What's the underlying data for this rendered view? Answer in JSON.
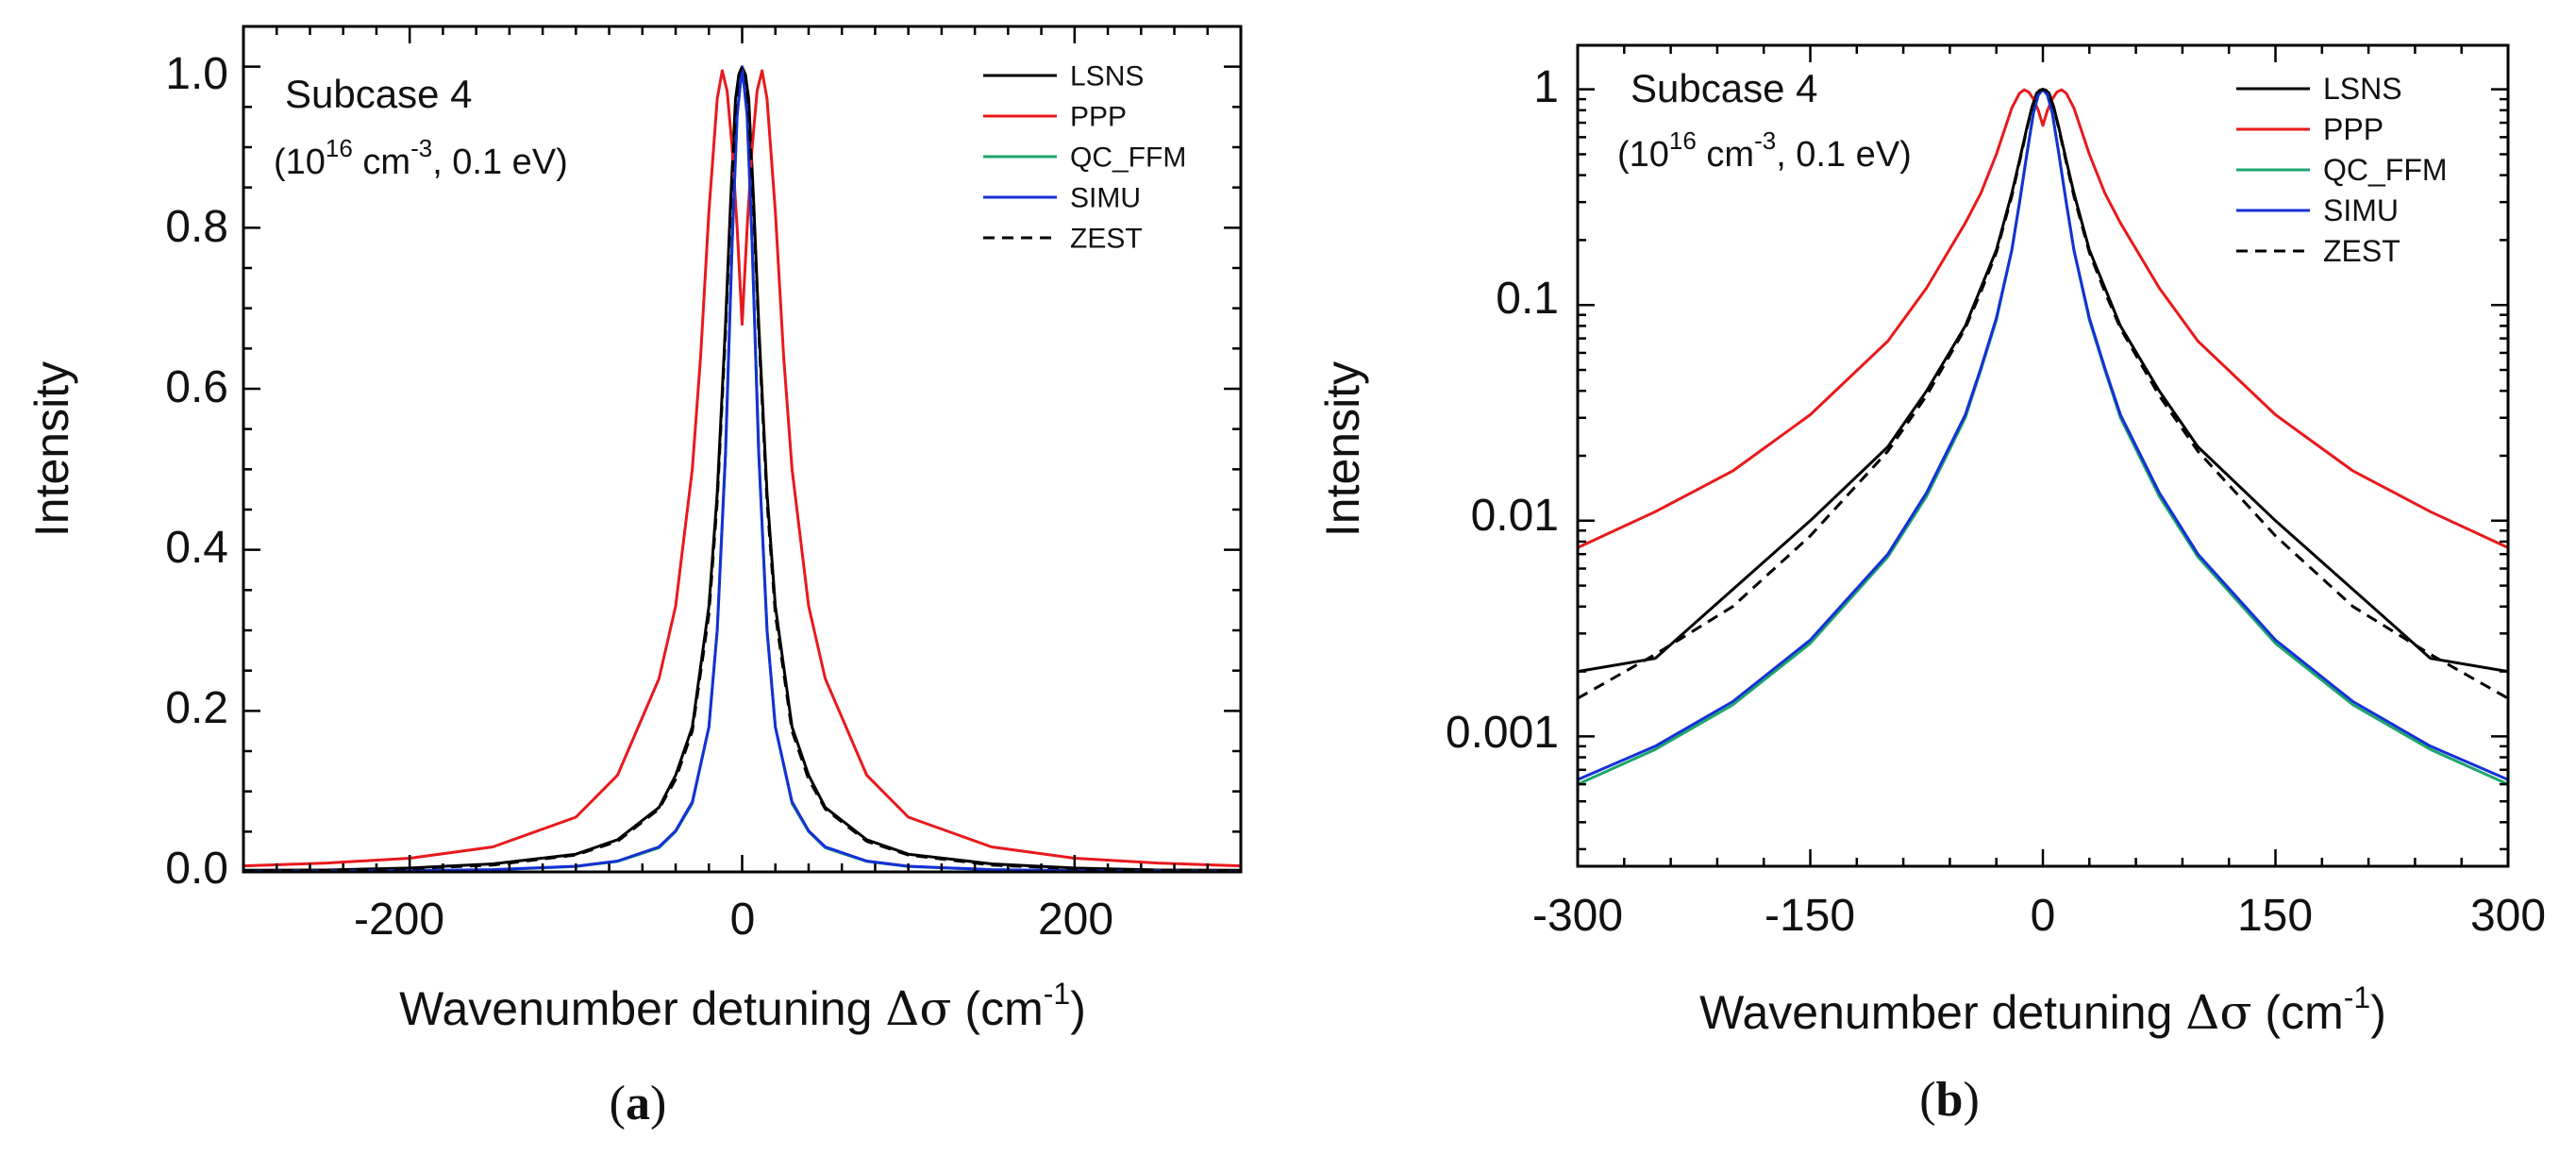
{
  "figure": {
    "panels": [
      {
        "id": "a",
        "panel_label": "a",
        "ylabel": "Intensity",
        "xlabel_main": "Wavenumber detuning ",
        "xlabel_sym": "Δσ",
        "xlabel_unit": " (cm",
        "xlabel_exp": "-1",
        "xlabel_close": ")",
        "annotation_title": "Subcase 4",
        "annotation_line_pre": "(10",
        "annotation_exp1": "16",
        "annotation_mid": " cm",
        "annotation_exp2": "-3",
        "annotation_post": ", 0.1 eV)",
        "xtick_labels": [
          "-200",
          "0",
          "200"
        ],
        "ytick_labels": [
          "0.0",
          "0.2",
          "0.4",
          "0.6",
          "0.8",
          "1.0"
        ]
      },
      {
        "id": "b",
        "panel_label": "b",
        "ylabel": "Intensity",
        "xlabel_main": "Wavenumber detuning ",
        "xlabel_sym": "Δσ",
        "xlabel_unit": " (cm",
        "xlabel_exp": "-1",
        "xlabel_close": ")",
        "annotation_title": "Subcase 4",
        "annotation_line_pre": "(10",
        "annotation_exp1": "16",
        "annotation_mid": " cm",
        "annotation_exp2": "-3",
        "annotation_post": ", 0.1 eV)",
        "xtick_labels": [
          "-300",
          "-150",
          "0",
          "150",
          "300"
        ],
        "ytick_labels": [
          "0.001",
          "0.01",
          "0.1",
          "1"
        ]
      }
    ]
  },
  "chart_data": [
    {
      "type": "line",
      "panel": "a",
      "title": "",
      "xlabel": "Wavenumber detuning Δσ (cm-1)",
      "ylabel": "Intensity",
      "xscale": "linear",
      "yscale": "linear",
      "xlim": [
        -300,
        300
      ],
      "ylim": [
        0,
        1.05
      ],
      "xticks": [
        -200,
        0,
        200
      ],
      "yticks": [
        0,
        0.2,
        0.4,
        0.6,
        0.8,
        1.0
      ],
      "legend_position": "top-right",
      "annotation": "Subcase 4 (10^16 cm^-3, 0.1 eV)",
      "series": [
        {
          "name": "LSNS",
          "color": "#000000",
          "dash": "solid",
          "x": [
            -300,
            -250,
            -200,
            -150,
            -100,
            -75,
            -50,
            -40,
            -30,
            -20,
            -15,
            -10,
            -7,
            -4,
            -2,
            0,
            2,
            4,
            7,
            10,
            15,
            20,
            30,
            40,
            50,
            75,
            100,
            150,
            200,
            250,
            300
          ],
          "y": [
            0.002,
            0.0023,
            0.0048,
            0.01,
            0.022,
            0.04,
            0.08,
            0.12,
            0.18,
            0.33,
            0.47,
            0.68,
            0.83,
            0.96,
            0.99,
            1.0,
            0.99,
            0.96,
            0.83,
            0.68,
            0.47,
            0.33,
            0.18,
            0.12,
            0.08,
            0.04,
            0.022,
            0.01,
            0.0048,
            0.0023,
            0.002
          ]
        },
        {
          "name": "PPP",
          "color": "#e8191c",
          "dash": "solid",
          "x": [
            -300,
            -250,
            -200,
            -150,
            -100,
            -75,
            -50,
            -40,
            -30,
            -25,
            -20,
            -15,
            -12,
            -9,
            -6,
            -3,
            0,
            3,
            6,
            9,
            12,
            15,
            20,
            25,
            30,
            40,
            50,
            75,
            100,
            150,
            200,
            250,
            300
          ],
          "y": [
            0.0075,
            0.011,
            0.017,
            0.031,
            0.068,
            0.12,
            0.24,
            0.33,
            0.5,
            0.64,
            0.82,
            0.96,
            0.995,
            0.97,
            0.9,
            0.8,
            0.68,
            0.8,
            0.9,
            0.97,
            0.995,
            0.96,
            0.82,
            0.64,
            0.5,
            0.33,
            0.24,
            0.12,
            0.068,
            0.031,
            0.017,
            0.011,
            0.0075
          ]
        },
        {
          "name": "QC_FFM",
          "color": "#1ea56b",
          "dash": "solid",
          "x": [
            -300,
            -250,
            -200,
            -150,
            -100,
            -75,
            -50,
            -40,
            -30,
            -20,
            -15,
            -10,
            -6,
            -3,
            0,
            3,
            6,
            10,
            15,
            20,
            30,
            40,
            50,
            75,
            100,
            150,
            200,
            250,
            300
          ],
          "y": [
            0.0006,
            0.00087,
            0.0014,
            0.0027,
            0.0068,
            0.013,
            0.03,
            0.05,
            0.085,
            0.18,
            0.3,
            0.52,
            0.78,
            0.94,
            1.0,
            0.94,
            0.78,
            0.52,
            0.3,
            0.18,
            0.085,
            0.05,
            0.03,
            0.013,
            0.0068,
            0.0027,
            0.0014,
            0.00087,
            0.0006
          ]
        },
        {
          "name": "SIMU",
          "color": "#1530d6",
          "dash": "solid",
          "x": [
            -300,
            -250,
            -200,
            -150,
            -100,
            -75,
            -50,
            -40,
            -30,
            -20,
            -15,
            -10,
            -6,
            -3,
            0,
            3,
            6,
            10,
            15,
            20,
            30,
            40,
            50,
            75,
            100,
            150,
            200,
            250,
            300
          ],
          "y": [
            0.00063,
            0.0009,
            0.00145,
            0.0028,
            0.007,
            0.0135,
            0.031,
            0.051,
            0.087,
            0.18,
            0.3,
            0.52,
            0.78,
            0.94,
            1.0,
            0.94,
            0.78,
            0.52,
            0.3,
            0.18,
            0.087,
            0.051,
            0.031,
            0.0135,
            0.007,
            0.0028,
            0.00145,
            0.0009,
            0.00063
          ]
        },
        {
          "name": "ZEST",
          "color": "#000000",
          "dash": "dashed",
          "x": [
            -300,
            -250,
            -200,
            -150,
            -100,
            -75,
            -50,
            -40,
            -30,
            -20,
            -15,
            -10,
            -7,
            -4,
            -2,
            0,
            2,
            4,
            7,
            10,
            15,
            20,
            30,
            40,
            50,
            75,
            100,
            150,
            200,
            250,
            300
          ],
          "y": [
            0.0015,
            0.0024,
            0.004,
            0.0085,
            0.021,
            0.038,
            0.078,
            0.115,
            0.175,
            0.32,
            0.46,
            0.67,
            0.82,
            0.95,
            0.99,
            1.0,
            0.99,
            0.95,
            0.82,
            0.67,
            0.46,
            0.32,
            0.175,
            0.115,
            0.078,
            0.038,
            0.021,
            0.0085,
            0.004,
            0.0024,
            0.0015
          ]
        }
      ]
    },
    {
      "type": "line",
      "panel": "b",
      "title": "",
      "xlabel": "Wavenumber detuning Δσ (cm-1)",
      "ylabel": "Intensity",
      "xscale": "linear",
      "yscale": "log",
      "xlim": [
        -300,
        300
      ],
      "ylim": [
        0.00025,
        1.6
      ],
      "xticks": [
        -300,
        -150,
        0,
        150,
        300
      ],
      "yticks": [
        0.001,
        0.01,
        0.1,
        1
      ],
      "legend_position": "top-right",
      "annotation": "Subcase 4 (10^16 cm^-3, 0.1 eV)",
      "series_ref": "same data as panel a, plotted on a logarithmic intensity axis"
    }
  ]
}
